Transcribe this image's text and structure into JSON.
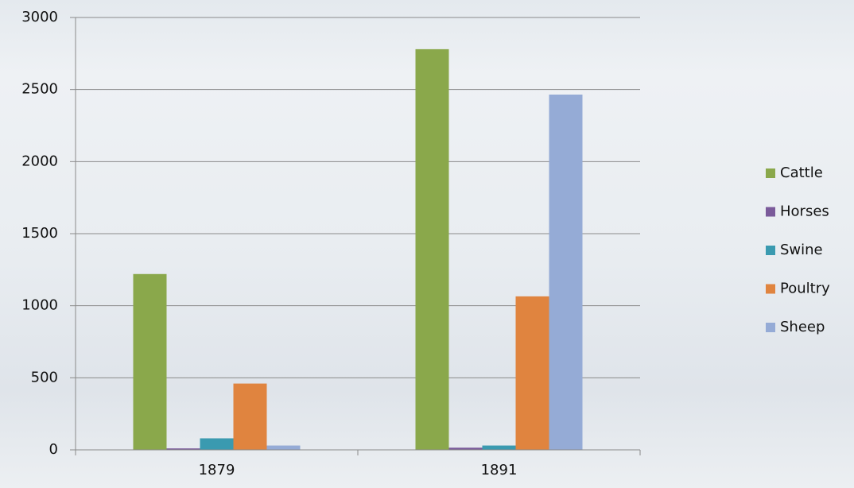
{
  "chart_data": {
    "type": "bar",
    "categories": [
      "1879",
      "1891"
    ],
    "series": [
      {
        "name": "Cattle",
        "color": "#8aa84b",
        "values": [
          1220,
          2780
        ]
      },
      {
        "name": "Horses",
        "color": "#7a5a9a",
        "values": [
          10,
          15
        ]
      },
      {
        "name": "Swine",
        "color": "#3a9ab0",
        "values": [
          80,
          30
        ]
      },
      {
        "name": "Poultry",
        "color": "#e0843f",
        "values": [
          460,
          1065
        ]
      },
      {
        "name": "Sheep",
        "color": "#95abd6",
        "values": [
          30,
          2465
        ]
      }
    ],
    "ylim": [
      0,
      3000
    ],
    "yticks": [
      0,
      500,
      1000,
      1500,
      2000,
      2500,
      3000
    ],
    "grid": true,
    "legend": "right"
  }
}
